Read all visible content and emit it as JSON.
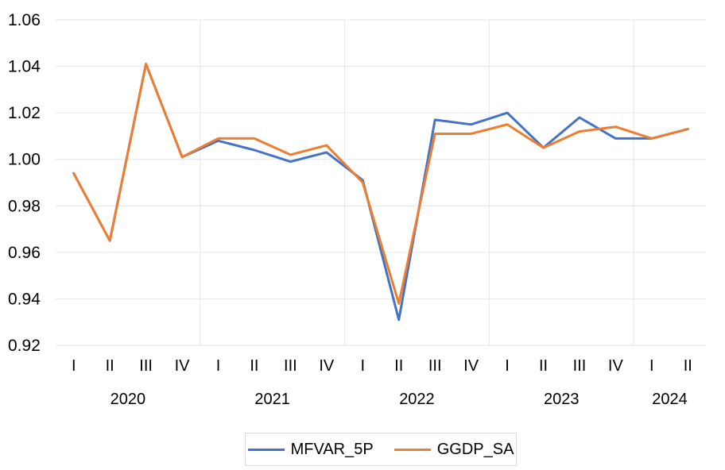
{
  "chart_data": {
    "type": "line",
    "x_quarters": [
      "I",
      "II",
      "III",
      "IV",
      "I",
      "II",
      "III",
      "IV",
      "I",
      "II",
      "III",
      "IV",
      "I",
      "II",
      "III",
      "IV",
      "I",
      "II"
    ],
    "years": [
      {
        "label": "2020",
        "start": 0,
        "end": 3
      },
      {
        "label": "2021",
        "start": 4,
        "end": 7
      },
      {
        "label": "2022",
        "start": 8,
        "end": 11
      },
      {
        "label": "2023",
        "start": 12,
        "end": 15
      },
      {
        "label": "2024",
        "start": 16,
        "end": 17
      }
    ],
    "ylim": [
      0.92,
      1.06
    ],
    "yticks": [
      "0.92",
      "0.94",
      "0.96",
      "0.98",
      "1.00",
      "1.02",
      "1.04",
      "1.06"
    ],
    "ytick_values": [
      0.92,
      0.94,
      0.96,
      0.98,
      1.0,
      1.02,
      1.04,
      1.06
    ],
    "series": [
      {
        "name": "MFVAR_5P",
        "color": "#4472c4",
        "values": [
          0.994,
          0.965,
          1.041,
          1.001,
          1.008,
          1.004,
          0.999,
          1.003,
          0.991,
          0.931,
          1.017,
          1.015,
          1.02,
          1.005,
          1.018,
          1.009,
          1.009,
          1.013
        ]
      },
      {
        "name": "GGDP_SA",
        "color": "#ed7d31",
        "values": [
          0.994,
          0.965,
          1.041,
          1.001,
          1.009,
          1.009,
          1.002,
          1.006,
          0.99,
          0.938,
          1.011,
          1.011,
          1.015,
          1.005,
          1.012,
          1.014,
          1.009,
          1.013
        ]
      }
    ]
  }
}
